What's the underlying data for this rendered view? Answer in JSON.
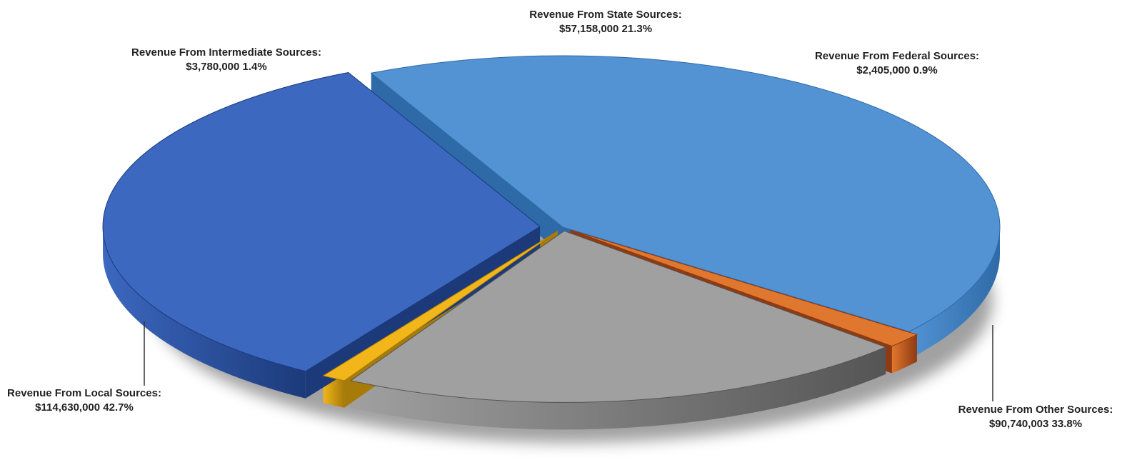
{
  "chart_data": {
    "type": "pie",
    "title": "",
    "slices": [
      {
        "name": "Revenue From Local Sources:",
        "value": 114630000,
        "value_label": "$114,630,000",
        "percent_label": "42.7%",
        "color": "#5393d3",
        "color_dark": "#2f6aa8"
      },
      {
        "name": "Revenue From Intermediate Sources:",
        "value": 3780000,
        "value_label": "$3,780,000",
        "percent_label": "1.4%",
        "color": "#e0772e",
        "color_dark": "#8f3a12"
      },
      {
        "name": "Revenue From State Sources:",
        "value": 57158000,
        "value_label": "$57,158,000",
        "percent_label": "21.3%",
        "color": "#a0a0a0",
        "color_dark": "#555555"
      },
      {
        "name": "Revenue From Federal Sources:",
        "value": 2405000,
        "value_label": "$2,405,000",
        "percent_label": "0.9%",
        "color": "#f2b61b",
        "color_dark": "#a67b08"
      },
      {
        "name": "Revenue From Other Sources:",
        "value": 90740003,
        "value_label": "$90,740,003",
        "percent_label": "33.8%",
        "color": "#3c68c0",
        "color_dark": "#1c3a7a"
      }
    ],
    "legend": "none",
    "style": "3d-exploded"
  }
}
